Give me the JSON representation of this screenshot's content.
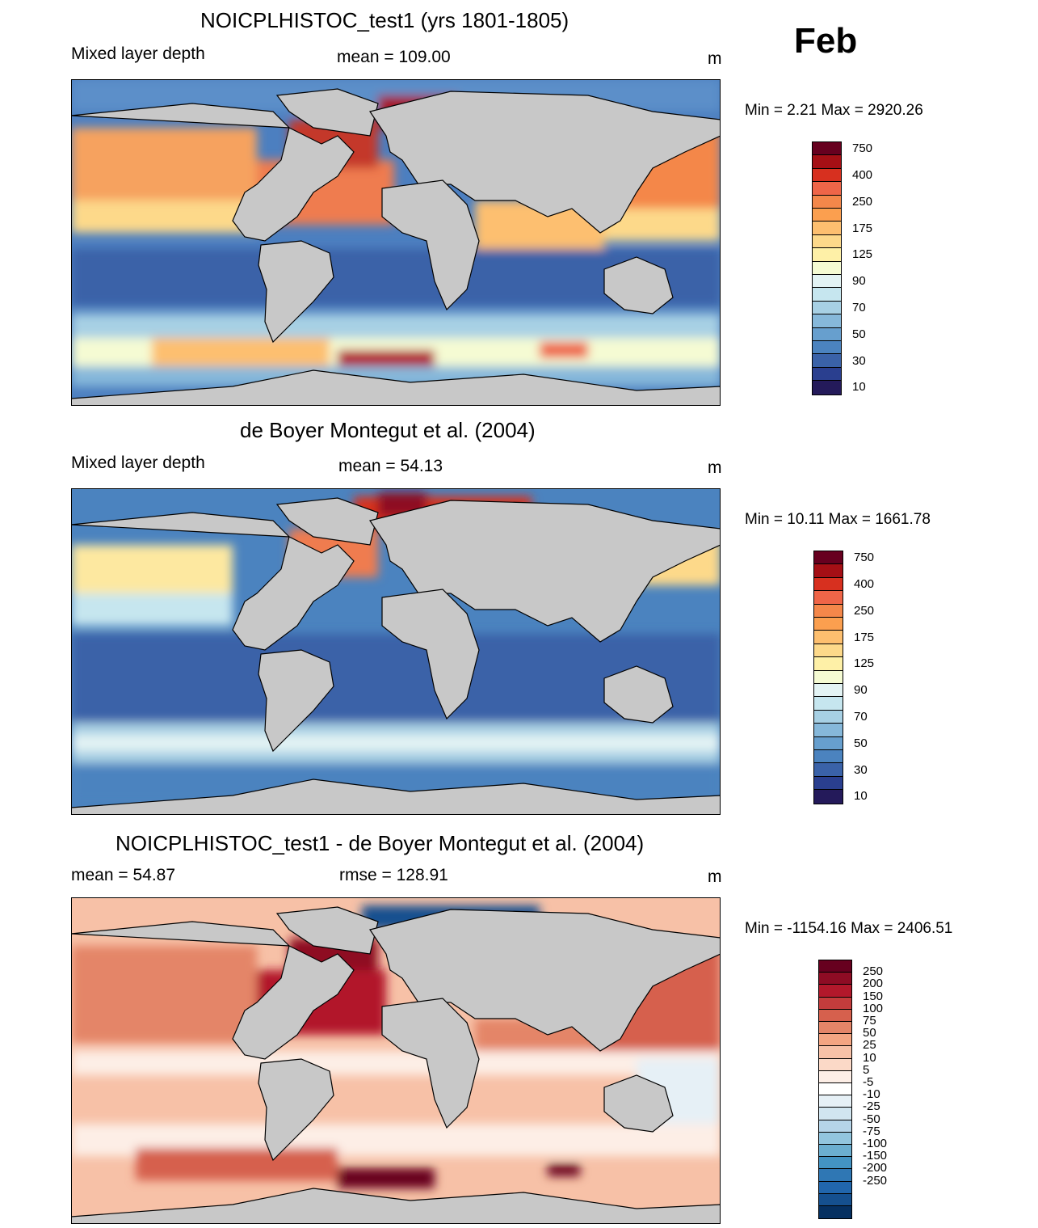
{
  "month": "Feb",
  "panels": [
    {
      "id": "model",
      "title": "NOICPLHISTOC_test1 (yrs 1801-1805)",
      "left_label": "Mixed layer depth",
      "center_label": "mean = 109.00",
      "units": "m",
      "minmax": "Min =   2.21 Max = 2920.26"
    },
    {
      "id": "obs",
      "title": "de Boyer Montegut et al. (2004)",
      "left_label": "Mixed layer depth",
      "center_label": "mean =  54.13",
      "units": "m",
      "minmax": "Min =  10.11 Max = 1661.78"
    },
    {
      "id": "diff",
      "title": "NOICPLHISTOC_test1 - de Boyer Montegut et al. (2004)",
      "left_label": "mean =  54.87",
      "center_label": "rmse = 128.91",
      "units": "m",
      "minmax": "Min = -1154.16 Max = 2406.51"
    }
  ],
  "colorbars": {
    "mld": {
      "labels": [
        "750",
        "400",
        "250",
        "175",
        "125",
        "90",
        "70",
        "50",
        "30",
        "10"
      ],
      "colors": [
        "#67001f",
        "#a50f15",
        "#d7301f",
        "#ef6548",
        "#f4874a",
        "#fb9f4f",
        "#fdbf6f",
        "#fdd98a",
        "#fef0a7",
        "#f5fbd3",
        "#e3f3f4",
        "#c6e6ef",
        "#a7d0e4",
        "#86b8da",
        "#679fce",
        "#4b83bf",
        "#3a62a8",
        "#2a3f8f",
        "#241a5a"
      ]
    },
    "diff": {
      "labels": [
        "250",
        "200",
        "150",
        "100",
        "75",
        "50",
        "25",
        "10",
        "5",
        "-5",
        "-10",
        "-25",
        "-50",
        "-75",
        "-100",
        "-150",
        "-200",
        "-250"
      ],
      "colors": [
        "#67001f",
        "#8e0c24",
        "#b2182b",
        "#c43c3c",
        "#d6604d",
        "#e48568",
        "#f4a582",
        "#f7c1a7",
        "#fbd9c7",
        "#fdeee6",
        "#ffffff",
        "#e6f0f6",
        "#d1e5f0",
        "#b5d4e8",
        "#92c5de",
        "#6baed0",
        "#4393c3",
        "#2f77b4",
        "#2166ac",
        "#15508f",
        "#053061"
      ]
    }
  }
}
